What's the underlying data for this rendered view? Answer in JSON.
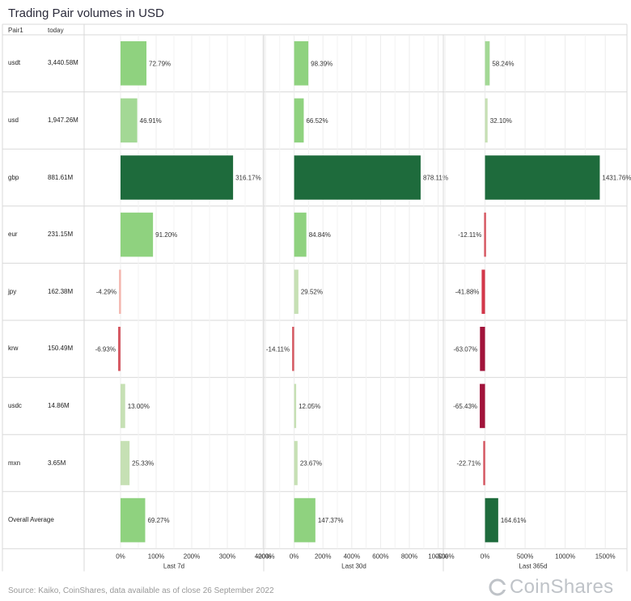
{
  "title": "Trading Pair volumes in USD",
  "headers": {
    "pair": "Pair1",
    "today": "today"
  },
  "source": "Source: Kaiko, CoinShares, data available as of close 26 September 2022",
  "logo": {
    "text": "CoinShares",
    "icon": "coinshares-c-icon"
  },
  "colors": {
    "pos_light": "#c6e0b4",
    "pos_mid": "#8fd27f",
    "pos_dark": "#1e6b3c",
    "neg_light": "#f4b6ae",
    "neg_mid": "#d3374a",
    "neg_dark": "#a1133a"
  },
  "chart_data": {
    "type": "bar",
    "orientation": "horizontal",
    "categories": [
      "usdt",
      "usd",
      "gbp",
      "eur",
      "jpy",
      "krw",
      "usdc",
      "mxn",
      "Overall Average"
    ],
    "today": [
      "3,440.58M",
      "1,947.26M",
      "881.61M",
      "231.15M",
      "162.38M",
      "150.49M",
      "14.86M",
      "3.65M",
      ""
    ],
    "series": [
      {
        "name": "Last 7d",
        "values": [
          72.79,
          46.91,
          316.17,
          91.2,
          -4.29,
          -6.93,
          13.0,
          25.33,
          69.27
        ],
        "labels": [
          "72.79%",
          "46.91%",
          "316.17%",
          "91.20%",
          "-4.29%",
          "-6.93%",
          "13.00%",
          "25.33%",
          "69.27%"
        ],
        "xlim": [
          -100,
          400
        ],
        "ticks": [
          0,
          100,
          200,
          300,
          400
        ],
        "tick_labels": [
          "0%",
          "100%",
          "200%",
          "300%",
          "400%"
        ]
      },
      {
        "name": "Last 30d",
        "values": [
          98.39,
          66.52,
          878.11,
          84.84,
          29.52,
          -14.11,
          12.05,
          23.67,
          147.37
        ],
        "labels": [
          "98.39%",
          "66.52%",
          "878.11%",
          "84.84%",
          "29.52%",
          "-14.11%",
          "12.05%",
          "23.67%",
          "147.37%"
        ],
        "xlim": [
          -200,
          1030
        ],
        "ticks": [
          -200,
          0,
          200,
          400,
          600,
          800,
          1000
        ],
        "tick_labels": [
          "-200%",
          "0%",
          "200%",
          "400%",
          "600%",
          "800%",
          "1000%"
        ]
      },
      {
        "name": "Last 365d",
        "values": [
          58.24,
          32.1,
          1431.76,
          -12.11,
          -41.88,
          -63.07,
          -65.43,
          -22.71,
          164.61
        ],
        "labels": [
          "58.24%",
          "32.10%",
          "1431.76%",
          "-12.11%",
          "-41.88%",
          "-63.07%",
          "-65.43%",
          "-22.71%",
          "164.61%"
        ],
        "xlim": [
          -500,
          1700
        ],
        "ticks": [
          -500,
          0,
          500,
          1000,
          1500
        ],
        "tick_labels": [
          "-500%",
          "0%",
          "500%",
          "1000%",
          "1500%"
        ]
      }
    ]
  }
}
